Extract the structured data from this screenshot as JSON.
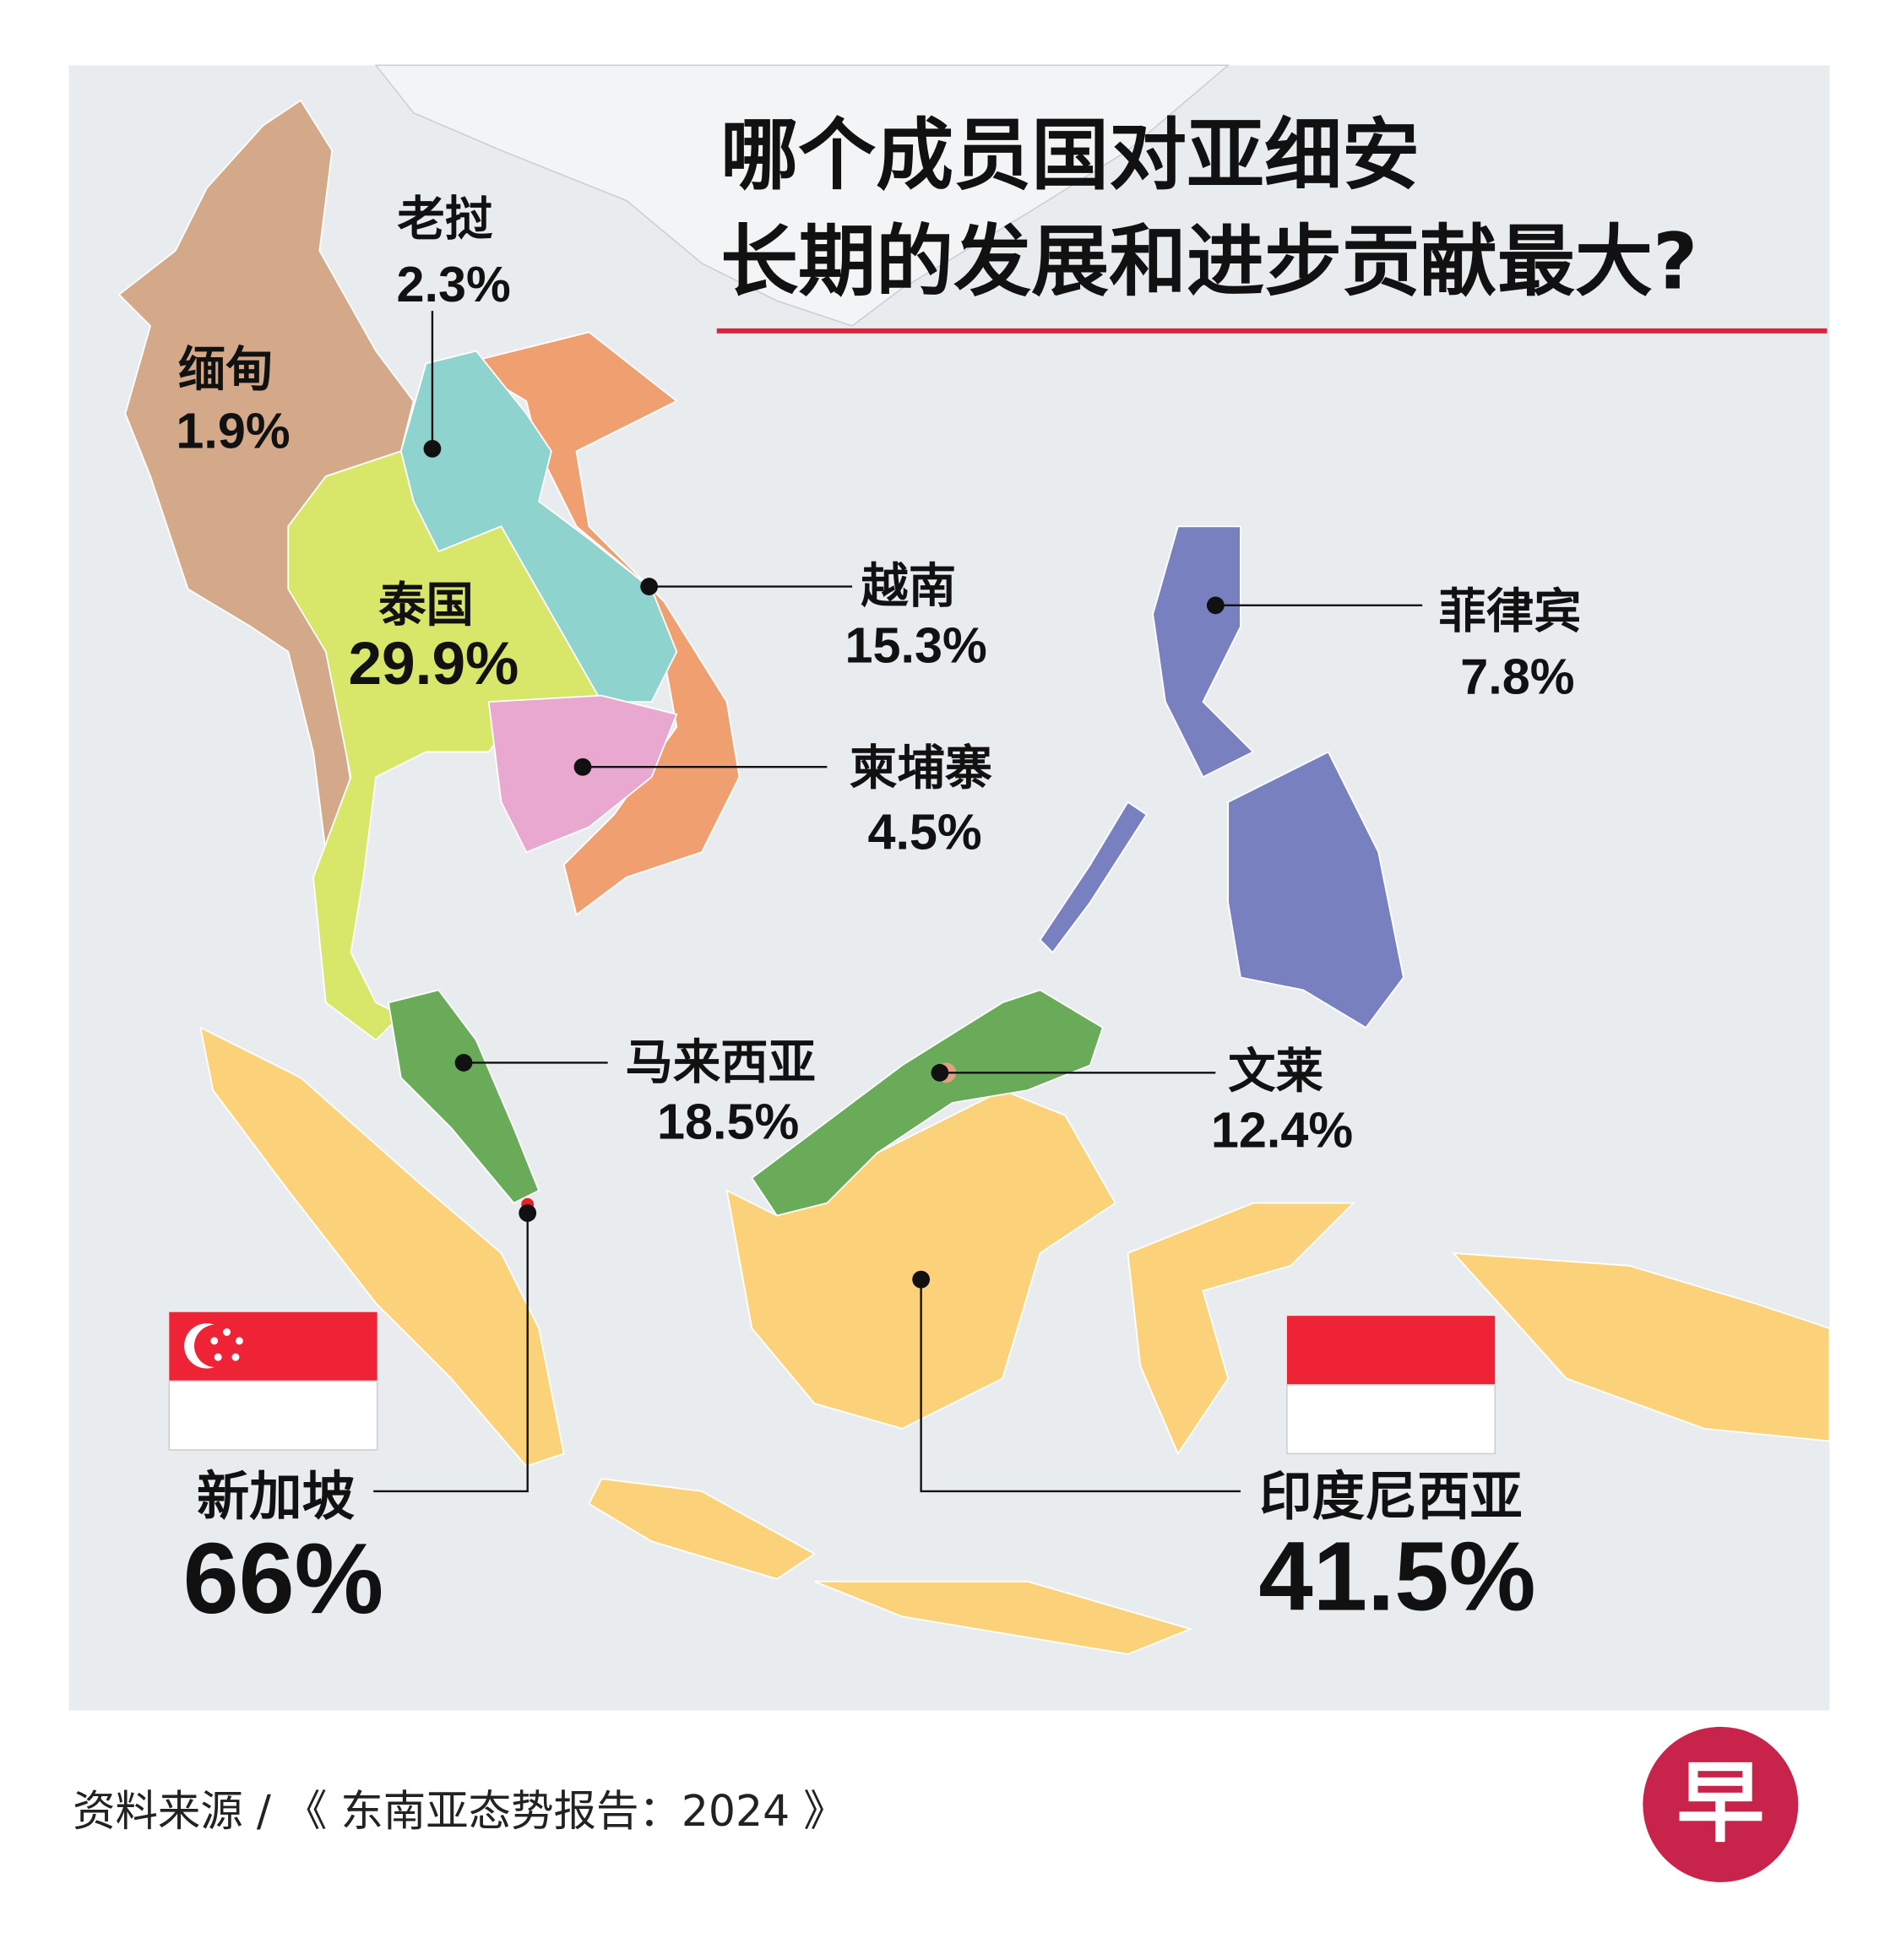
{
  "title": {
    "line1": "哪个成员国对亚细安",
    "line2": "长期的发展和进步贡献最大?"
  },
  "countries": [
    {
      "name": "老挝",
      "share": "2.3%"
    },
    {
      "name": "缅甸",
      "share": "1.9%"
    },
    {
      "name": "泰国",
      "share": "29.9%"
    },
    {
      "name": "越南",
      "share": "15.3%"
    },
    {
      "name": "柬埔寨",
      "share": "4.5%"
    },
    {
      "name": "菲律宾",
      "share": "7.8%"
    },
    {
      "name": "马来西亚",
      "share": "18.5%"
    },
    {
      "name": "文莱",
      "share": "12.4%"
    },
    {
      "name": "新加坡",
      "share": "66%"
    },
    {
      "name": "印度尼西亚",
      "share": "41.5%"
    }
  ],
  "source": "资料来源 / 《 东南亚态势报告：2024 》",
  "logo": "早"
}
